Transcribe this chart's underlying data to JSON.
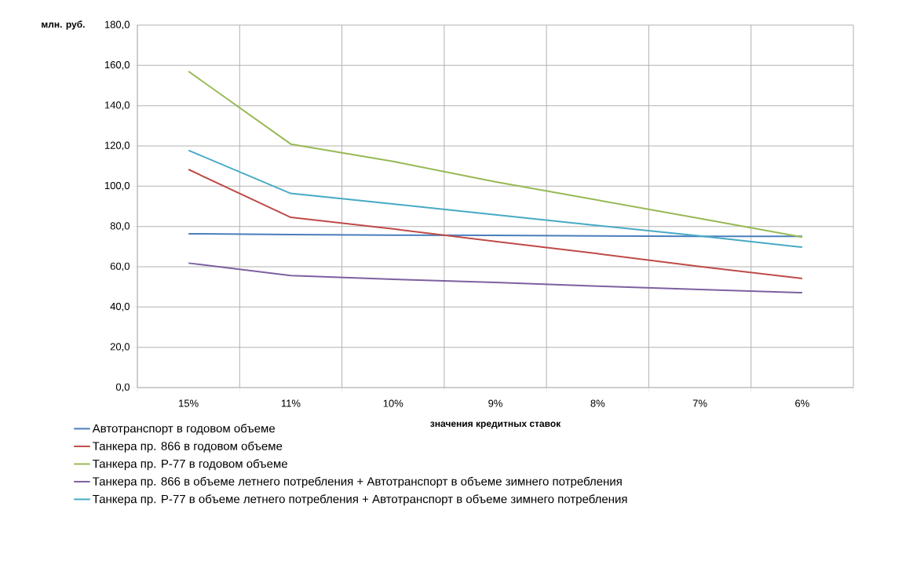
{
  "chart_data": {
    "type": "line",
    "ylabel": "млн. руб.",
    "xlabel": "значения кредитных ставок",
    "categories": [
      "15%",
      "11%",
      "10%",
      "9%",
      "8%",
      "7%",
      "6%"
    ],
    "series": [
      {
        "name": "Автотранспорт в годовом объеме",
        "color": "#4a7ebb",
        "values": [
          76.4,
          76.0,
          75.7,
          75.6,
          75.3,
          75.1,
          75.1
        ]
      },
      {
        "name": "Танкера пр. 866 в годовом объеме",
        "color": "#be4b48",
        "values": [
          108.3,
          84.5,
          78.8,
          72.6,
          66.5,
          60.1,
          54.2
        ]
      },
      {
        "name": "Танкера пр. Р-77 в годовом объеме",
        "color": "#98b954",
        "values": [
          157.0,
          120.9,
          112.3,
          102.2,
          93.1,
          84.0,
          74.7
        ]
      },
      {
        "name": "Танкера пр. 866 в объеме летнего потребления + Автотранспорт  в объеме зимнего потребления",
        "color": "#7d60a0",
        "values": [
          61.8,
          55.6,
          53.8,
          52.2,
          50.4,
          48.7,
          47.1
        ]
      },
      {
        "name": "Танкера пр. Р-77 в объеме летнего потребления  + Автотранспорт  в объеме зимнего потребления",
        "color": "#46aac5",
        "values": [
          117.8,
          96.4,
          91.2,
          85.8,
          80.5,
          75.3,
          69.7
        ]
      }
    ],
    "ylim": [
      0,
      180
    ],
    "yticks": [
      {
        "value": 0,
        "label": "0,0"
      },
      {
        "value": 20,
        "label": "20,0"
      },
      {
        "value": 40,
        "label": "40,0"
      },
      {
        "value": 60,
        "label": "60,0"
      },
      {
        "value": 80,
        "label": "80,0"
      },
      {
        "value": 100,
        "label": "100,0"
      },
      {
        "value": 120,
        "label": "120,0"
      },
      {
        "value": 140,
        "label": "140,0"
      },
      {
        "value": 160,
        "label": "160,0"
      },
      {
        "value": 180,
        "label": "180,0"
      }
    ],
    "grid": true,
    "legend": "bottom",
    "marker": "none",
    "line_style": "solid"
  }
}
